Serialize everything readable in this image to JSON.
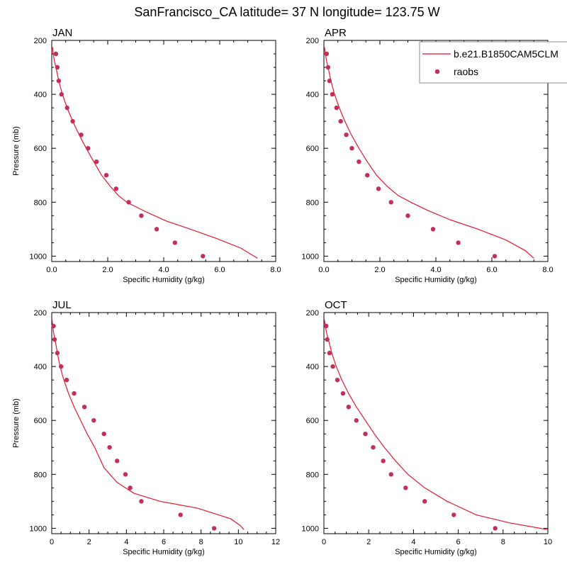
{
  "title": "SanFrancisco_CA  latitude= 37 N longitude= 123.75 W",
  "legend": {
    "model_label": "b.e21.B1850CAM5CLM",
    "obs_label": "raobs"
  },
  "colors": {
    "line": "#e8182c",
    "marker": "#c0305a"
  },
  "chart_data": [
    {
      "type": "line",
      "panel_title": "JAN",
      "xlabel": "Specific Humidity (g/kg)",
      "ylabel": "Pressure (mb)",
      "xlim": [
        0,
        8
      ],
      "ylim": [
        200,
        1020
      ],
      "xticks": [
        0,
        2,
        4,
        6,
        8
      ],
      "xticklabels": [
        "0.0",
        "2.0",
        "4.0",
        "6.0",
        "8.0"
      ],
      "yticks": [
        200,
        400,
        600,
        800,
        1000
      ],
      "series": [
        {
          "name": "b.e21.B1850CAM5CLM",
          "kind": "line",
          "x": [
            0.03,
            0.05,
            0.09,
            0.15,
            0.25,
            0.38,
            0.55,
            0.75,
            0.98,
            1.23,
            1.5,
            1.78,
            2.08,
            2.38,
            2.68,
            3.35,
            4.1,
            4.95,
            5.9,
            6.75,
            7.35
          ],
          "y": [
            225,
            250,
            275,
            300,
            350,
            400,
            450,
            500,
            550,
            600,
            650,
            700,
            740,
            775,
            800,
            835,
            870,
            900,
            935,
            970,
            1008
          ]
        },
        {
          "name": "raobs",
          "kind": "scatter",
          "x": [
            0.15,
            0.2,
            0.25,
            0.35,
            0.55,
            0.75,
            1.05,
            1.3,
            1.6,
            1.95,
            2.3,
            2.75,
            3.2,
            3.75,
            4.4,
            5.4
          ],
          "y": [
            250,
            300,
            350,
            400,
            450,
            500,
            550,
            600,
            650,
            700,
            750,
            800,
            850,
            900,
            950,
            1000
          ]
        }
      ]
    },
    {
      "type": "line",
      "panel_title": "APR",
      "xlabel": "Specific Humidity (g/kg)",
      "ylabel": "",
      "xlim": [
        0,
        8
      ],
      "ylim": [
        200,
        1020
      ],
      "xticks": [
        0,
        2,
        4,
        6,
        8
      ],
      "xticklabels": [
        "0.0",
        "2.0",
        "4.0",
        "6.0",
        "8.0"
      ],
      "yticks": [
        200,
        400,
        600,
        800,
        1000
      ],
      "series": [
        {
          "name": "b.e21.B1850CAM5CLM",
          "kind": "line",
          "x": [
            0.02,
            0.05,
            0.09,
            0.15,
            0.25,
            0.38,
            0.55,
            0.75,
            0.98,
            1.25,
            1.55,
            1.88,
            2.25,
            2.65,
            3.1,
            3.7,
            4.5,
            5.5,
            6.5,
            7.2,
            7.5
          ],
          "y": [
            225,
            250,
            275,
            300,
            350,
            400,
            450,
            500,
            550,
            600,
            650,
            700,
            740,
            775,
            800,
            830,
            865,
            900,
            940,
            980,
            1008
          ]
        },
        {
          "name": "raobs",
          "kind": "scatter",
          "x": [
            0.1,
            0.15,
            0.2,
            0.3,
            0.45,
            0.6,
            0.8,
            1.0,
            1.25,
            1.55,
            1.95,
            2.4,
            3.0,
            3.9,
            4.8,
            6.1
          ],
          "y": [
            250,
            300,
            350,
            400,
            450,
            500,
            550,
            600,
            650,
            700,
            750,
            800,
            850,
            900,
            950,
            1000
          ]
        }
      ]
    },
    {
      "type": "line",
      "panel_title": "JUL",
      "xlabel": "Specific Humidity (g/kg)",
      "ylabel": "Pressure (mb)",
      "xlim": [
        0,
        12
      ],
      "ylim": [
        200,
        1020
      ],
      "xticks": [
        0,
        2,
        4,
        6,
        8,
        10,
        12
      ],
      "xticklabels": [
        "0",
        "2",
        "4",
        "6",
        "8",
        "10",
        "12"
      ],
      "yticks": [
        200,
        400,
        600,
        800,
        1000
      ],
      "series": [
        {
          "name": "b.e21.B1850CAM5CLM",
          "kind": "line",
          "x": [
            0.02,
            0.05,
            0.1,
            0.18,
            0.3,
            0.45,
            0.65,
            0.9,
            1.2,
            1.55,
            1.9,
            2.3,
            2.8,
            3.5,
            4.4,
            5.8,
            7.8,
            9.6,
            10.1,
            10.3
          ],
          "y": [
            225,
            250,
            275,
            300,
            350,
            400,
            450,
            500,
            550,
            600,
            650,
            700,
            775,
            830,
            870,
            900,
            925,
            965,
            990,
            1005
          ]
        },
        {
          "name": "raobs",
          "kind": "scatter",
          "x": [
            0.1,
            0.15,
            0.3,
            0.5,
            0.8,
            1.2,
            1.75,
            2.25,
            2.8,
            3.1,
            3.5,
            3.95,
            4.2,
            4.8,
            6.9,
            8.7
          ],
          "y": [
            250,
            300,
            350,
            400,
            450,
            500,
            550,
            600,
            650,
            700,
            750,
            800,
            850,
            900,
            950,
            1000
          ]
        }
      ]
    },
    {
      "type": "line",
      "panel_title": "OCT",
      "xlabel": "Specific Humidity (g/kg)",
      "ylabel": "",
      "xlim": [
        0,
        10
      ],
      "ylim": [
        200,
        1020
      ],
      "xticks": [
        0,
        2,
        4,
        6,
        8,
        10
      ],
      "xticklabels": [
        "0",
        "2",
        "4",
        "6",
        "8",
        "10"
      ],
      "yticks": [
        200,
        400,
        600,
        800,
        1000
      ],
      "series": [
        {
          "name": "b.e21.B1850CAM5CLM",
          "kind": "line",
          "x": [
            0.02,
            0.06,
            0.12,
            0.2,
            0.35,
            0.55,
            0.8,
            1.1,
            1.45,
            1.85,
            2.25,
            2.7,
            3.2,
            3.75,
            4.5,
            5.5,
            6.8,
            8.3,
            10.0
          ],
          "y": [
            225,
            250,
            275,
            300,
            350,
            400,
            450,
            500,
            550,
            600,
            650,
            700,
            750,
            800,
            850,
            900,
            950,
            980,
            1005
          ]
        },
        {
          "name": "raobs",
          "kind": "scatter",
          "x": [
            0.1,
            0.15,
            0.25,
            0.4,
            0.6,
            0.85,
            1.1,
            1.45,
            1.85,
            2.2,
            2.65,
            3.0,
            3.65,
            4.5,
            5.8,
            7.65
          ],
          "y": [
            250,
            300,
            350,
            400,
            450,
            500,
            550,
            600,
            650,
            700,
            750,
            800,
            850,
            900,
            950,
            1000
          ]
        }
      ]
    }
  ]
}
